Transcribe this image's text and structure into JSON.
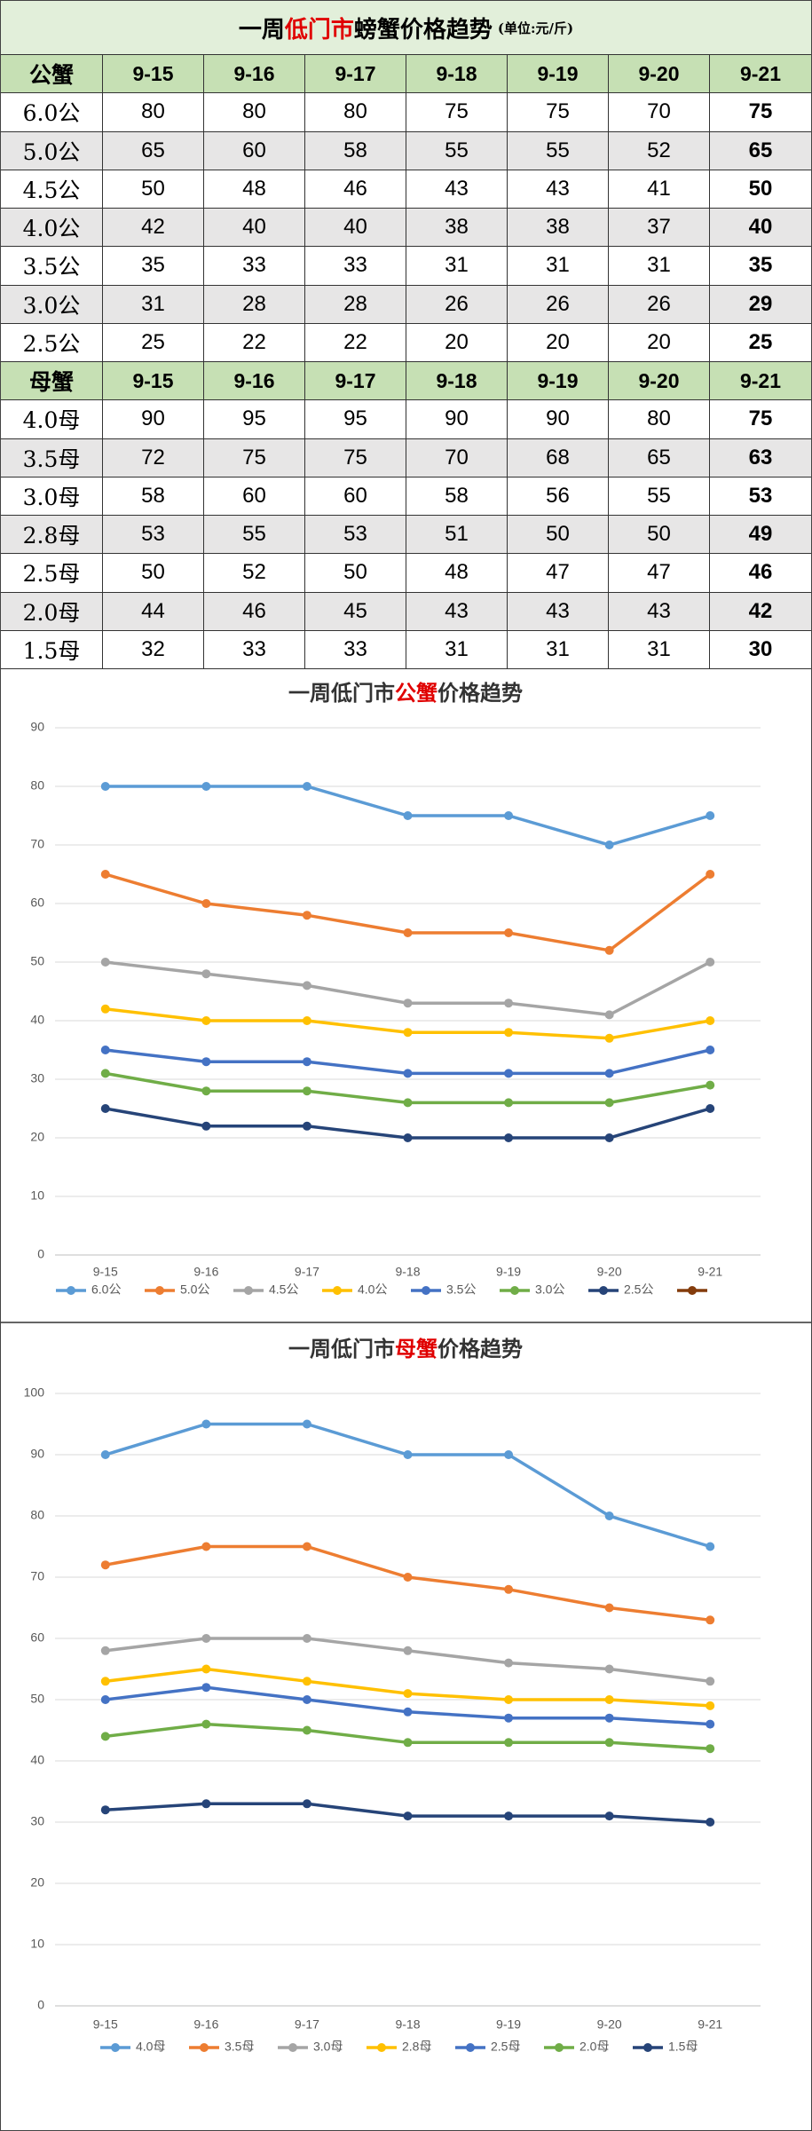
{
  "header": {
    "title_parts": [
      "一周",
      "低门市",
      "螃蟹价格趋势"
    ],
    "unit": "(单位:元/斤)"
  },
  "table": {
    "sections": [
      {
        "label": "公蟹",
        "columns": [
          "9-15",
          "9-16",
          "9-17",
          "9-18",
          "9-19",
          "9-20",
          "9-21"
        ],
        "rows": [
          {
            "label": "6.0公",
            "values": [
              80,
              80,
              80,
              75,
              75,
              70,
              75
            ]
          },
          {
            "label": "5.0公",
            "values": [
              65,
              60,
              58,
              55,
              55,
              52,
              65
            ]
          },
          {
            "label": "4.5公",
            "values": [
              50,
              48,
              46,
              43,
              43,
              41,
              50
            ]
          },
          {
            "label": "4.0公",
            "values": [
              42,
              40,
              40,
              38,
              38,
              37,
              40
            ]
          },
          {
            "label": "3.5公",
            "values": [
              35,
              33,
              33,
              31,
              31,
              31,
              35
            ]
          },
          {
            "label": "3.0公",
            "values": [
              31,
              28,
              28,
              26,
              26,
              26,
              29
            ]
          },
          {
            "label": "2.5公",
            "values": [
              25,
              22,
              22,
              20,
              20,
              20,
              25
            ]
          }
        ]
      },
      {
        "label": "母蟹",
        "columns": [
          "9-15",
          "9-16",
          "9-17",
          "9-18",
          "9-19",
          "9-20",
          "9-21"
        ],
        "rows": [
          {
            "label": "4.0母",
            "values": [
              90,
              95,
              95,
              90,
              90,
              80,
              75
            ]
          },
          {
            "label": "3.5母",
            "values": [
              72,
              75,
              75,
              70,
              68,
              65,
              63
            ]
          },
          {
            "label": "3.0母",
            "values": [
              58,
              60,
              60,
              58,
              56,
              55,
              53
            ]
          },
          {
            "label": "2.8母",
            "values": [
              53,
              55,
              53,
              51,
              50,
              50,
              49
            ]
          },
          {
            "label": "2.5母",
            "values": [
              50,
              52,
              50,
              48,
              47,
              47,
              46
            ]
          },
          {
            "label": "2.0母",
            "values": [
              44,
              46,
              45,
              43,
              43,
              43,
              42
            ]
          },
          {
            "label": "1.5母",
            "values": [
              32,
              33,
              33,
              31,
              31,
              31,
              30
            ]
          }
        ]
      }
    ]
  },
  "chart_data": [
    {
      "type": "line",
      "title_parts": [
        "一周低门市",
        "公蟹",
        "价格趋势"
      ],
      "categories": [
        "9-15",
        "9-16",
        "9-17",
        "9-18",
        "9-19",
        "9-20",
        "9-21"
      ],
      "ylim": [
        0,
        90
      ],
      "yticks": [
        0,
        10,
        20,
        30,
        40,
        50,
        60,
        70,
        80,
        90
      ],
      "grid": true,
      "legend": "bottom",
      "series": [
        {
          "name": "6.0公",
          "color": "#5b9bd5",
          "values": [
            80,
            80,
            80,
            75,
            75,
            70,
            75
          ]
        },
        {
          "name": "5.0公",
          "color": "#ed7d31",
          "values": [
            65,
            60,
            58,
            55,
            55,
            52,
            65
          ]
        },
        {
          "name": "4.5公",
          "color": "#a5a5a5",
          "values": [
            50,
            48,
            46,
            43,
            43,
            41,
            50
          ]
        },
        {
          "name": "4.0公",
          "color": "#ffc000",
          "values": [
            42,
            40,
            40,
            38,
            38,
            37,
            40
          ]
        },
        {
          "name": "3.5公",
          "color": "#4472c4",
          "values": [
            35,
            33,
            33,
            31,
            31,
            31,
            35
          ]
        },
        {
          "name": "3.0公",
          "color": "#70ad47",
          "values": [
            31,
            28,
            28,
            26,
            26,
            26,
            29
          ]
        },
        {
          "name": "2.5公",
          "color": "#264478",
          "values": [
            25,
            22,
            22,
            20,
            20,
            20,
            25
          ]
        },
        {
          "name": null,
          "color": "#843c0c",
          "values": [
            null,
            null,
            null,
            null,
            null,
            null,
            null
          ]
        }
      ]
    },
    {
      "type": "line",
      "title_parts": [
        "一周低门市",
        "母蟹",
        "价格趋势"
      ],
      "categories": [
        "9-15",
        "9-16",
        "9-17",
        "9-18",
        "9-19",
        "9-20",
        "9-21"
      ],
      "ylim": [
        0,
        100
      ],
      "yticks": [
        0,
        10,
        20,
        30,
        40,
        50,
        60,
        70,
        80,
        90,
        100
      ],
      "grid": true,
      "legend": "bottom",
      "series": [
        {
          "name": "4.0母",
          "color": "#5b9bd5",
          "values": [
            90,
            95,
            95,
            90,
            90,
            80,
            75
          ]
        },
        {
          "name": "3.5母",
          "color": "#ed7d31",
          "values": [
            72,
            75,
            75,
            70,
            68,
            65,
            63
          ]
        },
        {
          "name": "3.0母",
          "color": "#a5a5a5",
          "values": [
            58,
            60,
            60,
            58,
            56,
            55,
            53
          ]
        },
        {
          "name": "2.8母",
          "color": "#ffc000",
          "values": [
            53,
            55,
            53,
            51,
            50,
            50,
            49
          ]
        },
        {
          "name": "2.5母",
          "color": "#4472c4",
          "values": [
            50,
            52,
            50,
            48,
            47,
            47,
            46
          ]
        },
        {
          "name": "2.0母",
          "color": "#70ad47",
          "values": [
            44,
            46,
            45,
            43,
            43,
            43,
            42
          ]
        },
        {
          "name": "1.5母",
          "color": "#264478",
          "values": [
            32,
            33,
            33,
            31,
            31,
            31,
            30
          ]
        }
      ]
    }
  ]
}
